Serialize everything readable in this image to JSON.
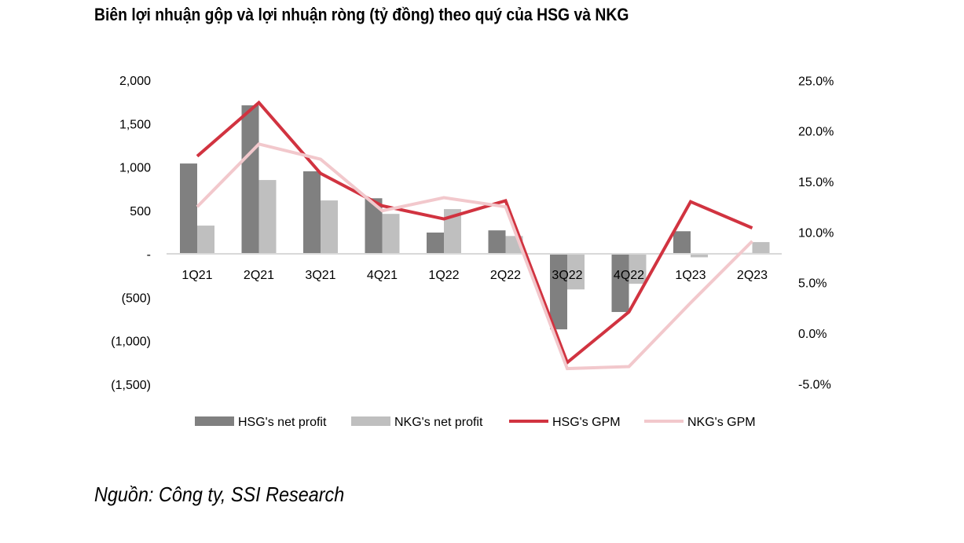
{
  "title": "Biên lợi nhuận gộp và lợi nhuận ròng (tỷ đồng) theo quý của HSG và NKG",
  "source": "Nguồn: Công ty, SSI Research",
  "chart_data": {
    "type": "bar+line",
    "title": "Biên lợi nhuận gộp và lợi nhuận ròng (tỷ đồng) theo quý của HSG và NKG",
    "categories": [
      "1Q21",
      "2Q21",
      "3Q21",
      "4Q21",
      "1Q22",
      "2Q22",
      "3Q22",
      "4Q22",
      "1Q23",
      "2Q23"
    ],
    "left_axis": {
      "range": [
        -1500,
        2000
      ],
      "ticks": [
        2000,
        1500,
        1000,
        500,
        0,
        -500,
        -1000,
        -1500
      ],
      "tick_labels": [
        "2,000",
        "1,500",
        "1,000",
        "500",
        "-",
        "(500)",
        "(1,000)",
        "(1,500)"
      ]
    },
    "right_axis": {
      "range": [
        -5,
        25
      ],
      "ticks": [
        25,
        20,
        15,
        10,
        5,
        0,
        -5
      ],
      "tick_labels": [
        "25.0%",
        "20.0%",
        "15.0%",
        "10.0%",
        "5.0%",
        "0.0%",
        "-5.0%"
      ]
    },
    "series": [
      {
        "name": "HSG's net profit",
        "type": "bar",
        "axis": "left",
        "color": "#808080",
        "values": [
          1040,
          1710,
          950,
          640,
          245,
          270,
          -870,
          -670,
          260,
          10
        ]
      },
      {
        "name": "NKG's net profit",
        "type": "bar",
        "axis": "left",
        "color": "#bfbfbf",
        "values": [
          325,
          850,
          615,
          460,
          515,
          205,
          -410,
          -345,
          -40,
          135
        ]
      },
      {
        "name": "HSG's GPM",
        "type": "line",
        "axis": "right",
        "color": "#d13340",
        "values": [
          17.5,
          22.8,
          15.8,
          12.6,
          11.3,
          13.1,
          -2.9,
          2.1,
          13.0,
          10.4
        ]
      },
      {
        "name": "NKG's GPM",
        "type": "line",
        "axis": "right",
        "color": "#f2c8cc",
        "values": [
          12.5,
          18.7,
          17.2,
          12.1,
          13.4,
          12.5,
          -3.5,
          -3.3,
          3.0,
          9.1
        ]
      }
    ],
    "legend": "bottom"
  }
}
